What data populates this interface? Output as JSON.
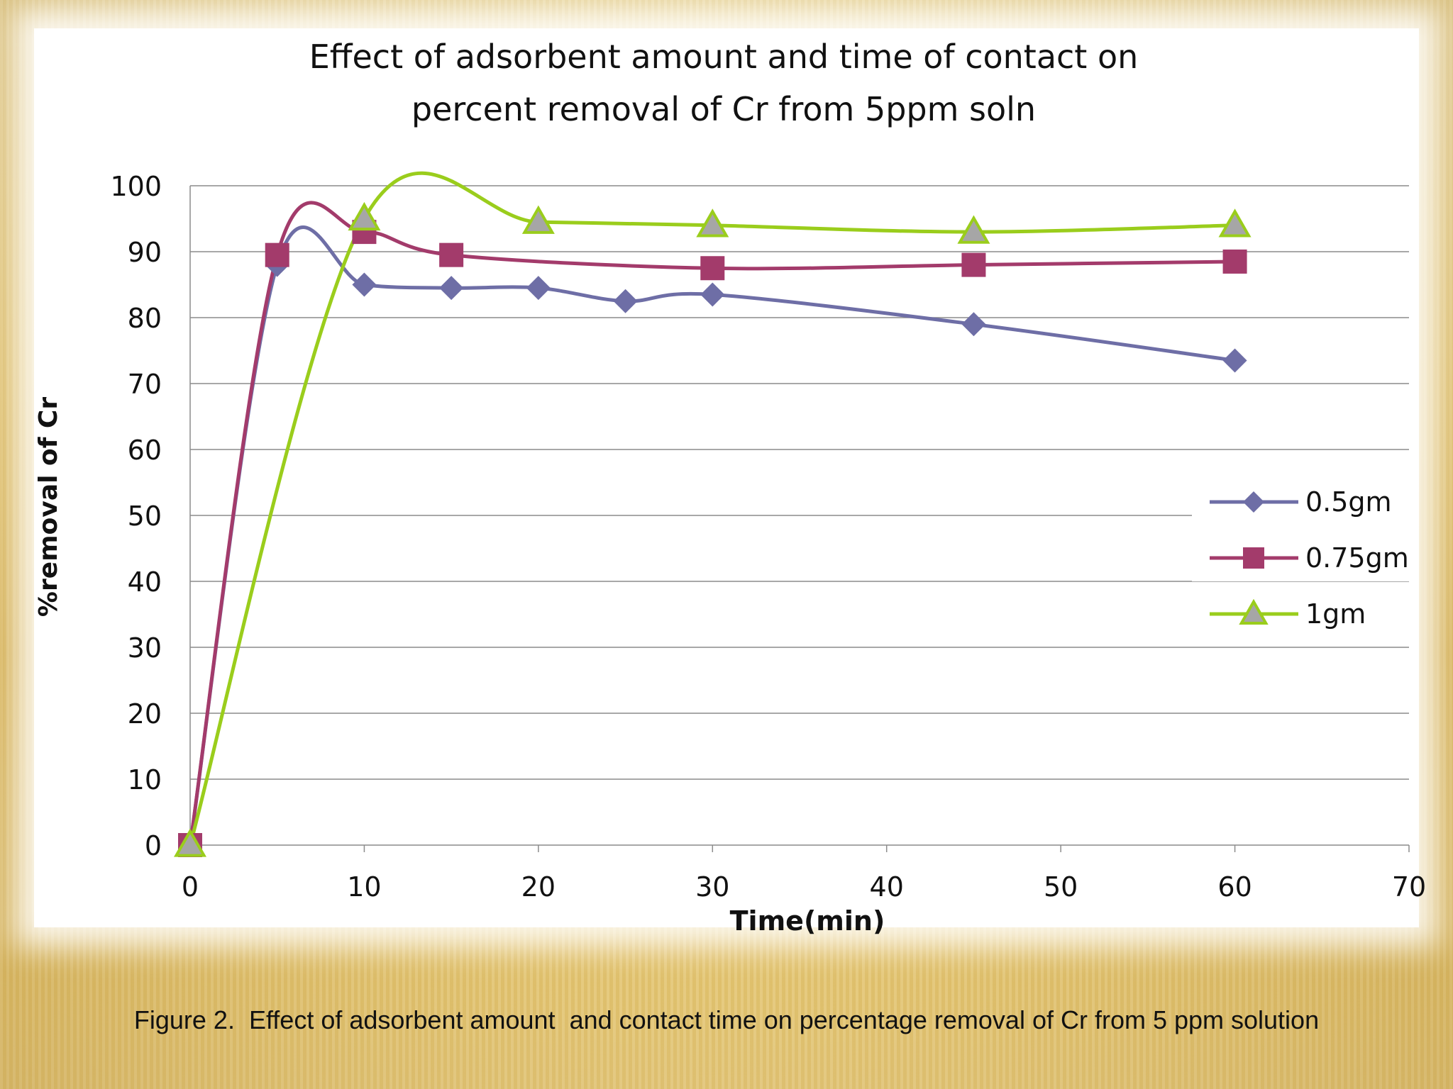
{
  "caption": "Figure 2.  Effect of adsorbent amount  and contact time on percentage removal of Cr from 5 ppm solution",
  "chart_data": {
    "type": "line",
    "title_lines": [
      "Effect of adsorbent  amount  and time of contact on",
      "percent removal of Cr  from 5ppm soln"
    ],
    "xlabel": "Time(min)",
    "ylabel": "%removal of Cr",
    "xlim": [
      0,
      70
    ],
    "ylim": [
      0,
      100
    ],
    "xticks": [
      0,
      10,
      20,
      30,
      40,
      50,
      60,
      70
    ],
    "yticks": [
      0,
      10,
      20,
      30,
      40,
      50,
      60,
      70,
      80,
      90,
      100
    ],
    "grid": "horizontal",
    "legend_position": "right",
    "series": [
      {
        "name": "0.5gm",
        "color": "#6e6ea6",
        "marker": "diamond",
        "x": [
          0,
          5,
          10,
          15,
          20,
          25,
          30,
          45,
          60
        ],
        "y": [
          0,
          88,
          85,
          84.5,
          84.5,
          82.5,
          83.5,
          79,
          73.5
        ]
      },
      {
        "name": "0.75gm",
        "color": "#a33b6b",
        "marker": "square",
        "x": [
          0,
          5,
          10,
          15,
          30,
          45,
          60
        ],
        "y": [
          0,
          89.5,
          93,
          89.5,
          87.5,
          88,
          88.5
        ]
      },
      {
        "name": "1gm",
        "color": "#9acd1c",
        "marker": "triangle",
        "x": [
          0,
          10,
          20,
          30,
          45,
          60
        ],
        "y": [
          0,
          95,
          94.5,
          94,
          93,
          94
        ]
      }
    ]
  }
}
